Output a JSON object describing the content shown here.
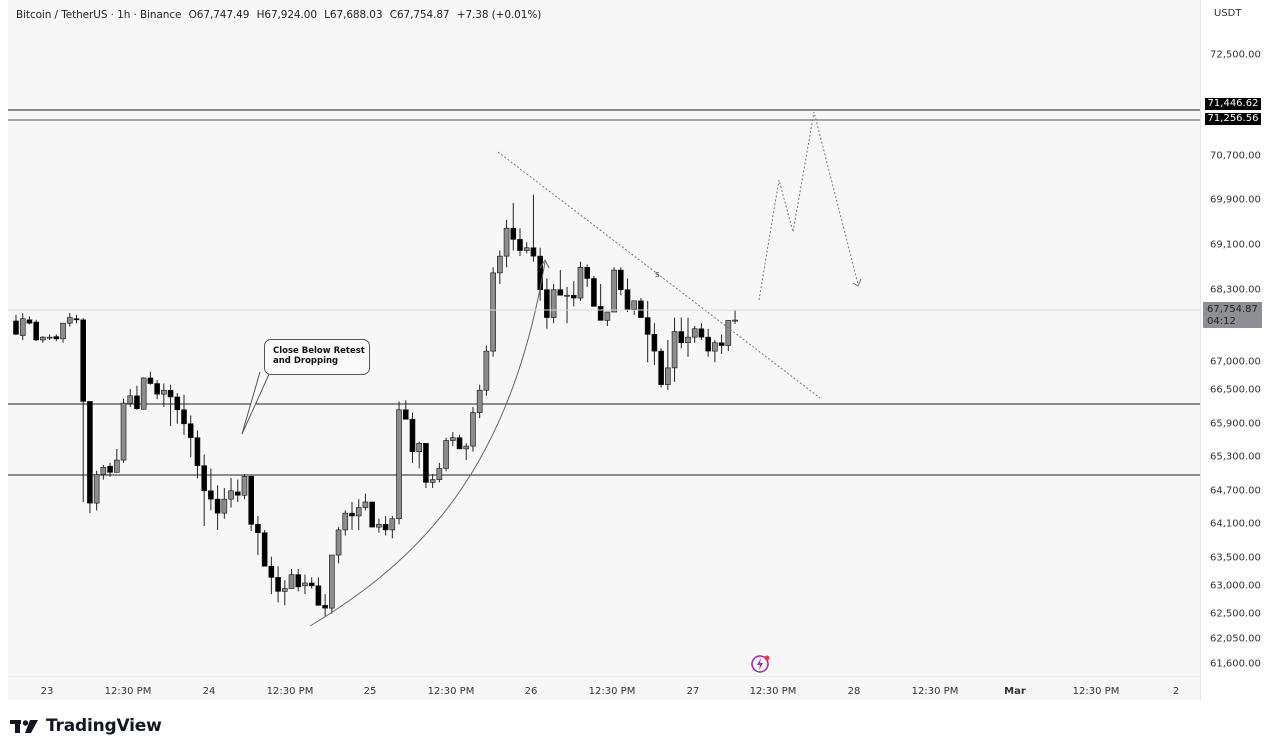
{
  "header": {
    "symbol": "Bitcoin / TetherUS · 1h · Binance",
    "open": "O67,747.49",
    "high": "H67,924.00",
    "low": "L67,688.03",
    "close": "C67,754.87",
    "change": "+7.38 (+0.01%)"
  },
  "price_axis": {
    "currency": "USDT",
    "ticks": [
      "72,500.00",
      "70,700.00",
      "69,900.00",
      "69,100.00",
      "68,300.00",
      "67,000.00",
      "66,500.00",
      "65,900.00",
      "65,300.00",
      "64,700.00",
      "64,100.00",
      "63,500.00",
      "63,000.00",
      "62,500.00",
      "62,050.00",
      "61,600.00"
    ],
    "horizontal_labels": [
      "71,446.62",
      "71,256.56"
    ],
    "last_price": "67,754.87",
    "countdown": "04:12"
  },
  "time_axis": {
    "labels": [
      "23",
      "12:30 PM",
      "24",
      "12:30 PM",
      "25",
      "12:30 PM",
      "26",
      "12:30 PM",
      "27",
      "12:30 PM",
      "28",
      "12:30 PM",
      "Mar",
      "12:30 PM",
      "2"
    ]
  },
  "annotation": {
    "callout_line1": "Close Below Retest",
    "callout_line2": "and Dropping"
  },
  "branding": {
    "logo_text": "TradingView"
  },
  "colors": {
    "up": "#8c8c8c",
    "down": "#000000",
    "background": "#f7f7f7",
    "accent": "#9c27b0"
  },
  "chart_data": {
    "type": "candlestick",
    "title": "Bitcoin / TetherUS · 1h · Binance",
    "xlabel": "",
    "ylabel": "USDT",
    "ylim": [
      61400,
      73000
    ],
    "x_ticks": [
      "23",
      "12:30 PM",
      "24",
      "12:30 PM",
      "25",
      "12:30 PM",
      "26",
      "12:30 PM",
      "27",
      "12:30 PM",
      "28",
      "12:30 PM",
      "Mar",
      "12:30 PM",
      "2"
    ],
    "y_ticks": [
      72500,
      70700,
      69900,
      69100,
      68300,
      67000,
      66500,
      65900,
      65300,
      64700,
      64100,
      63500,
      63000,
      62500,
      62050,
      61600
    ],
    "last": {
      "open": 67747.49,
      "high": 67924.0,
      "low": 67688.03,
      "close": 67754.87,
      "change": 7.38,
      "change_pct": 0.01
    },
    "horizontal_levels": [
      71446.62,
      71256.56,
      65950,
      64720
    ],
    "candles": [
      [
        67740,
        67850,
        67560,
        67500
      ],
      [
        67480,
        67880,
        67400,
        67780
      ],
      [
        67760,
        67820,
        67680,
        67700
      ],
      [
        67720,
        67760,
        67380,
        67400
      ],
      [
        67400,
        67470,
        67350,
        67450
      ],
      [
        67440,
        67500,
        67400,
        67450
      ],
      [
        67460,
        67500,
        67380,
        67420
      ],
      [
        67420,
        67520,
        67350,
        67700
      ],
      [
        67700,
        67880,
        67640,
        67800
      ],
      [
        67780,
        67850,
        67700,
        67760
      ],
      [
        67760,
        67790,
        64500,
        66300
      ],
      [
        66300,
        66300,
        64300,
        64480
      ],
      [
        64480,
        65060,
        64350,
        64990
      ],
      [
        64990,
        65160,
        64900,
        65120
      ],
      [
        65140,
        65200,
        64950,
        65030
      ],
      [
        65030,
        65450,
        65030,
        65250
      ],
      [
        65250,
        66350,
        65200,
        66270
      ],
      [
        66260,
        66520,
        66200,
        66400
      ],
      [
        66400,
        66580,
        66150,
        66170
      ],
      [
        66160,
        66730,
        66150,
        66720
      ],
      [
        66720,
        66830,
        66600,
        66620
      ],
      [
        66620,
        66680,
        66340,
        66430
      ],
      [
        66430,
        66620,
        66200,
        66500
      ],
      [
        66500,
        66600,
        65860,
        66380
      ],
      [
        66380,
        66450,
        65900,
        66150
      ],
      [
        66150,
        66420,
        65700,
        65900
      ],
      [
        65900,
        66050,
        65300,
        65650
      ],
      [
        65650,
        65780,
        64920,
        65150
      ],
      [
        65150,
        65350,
        64070,
        64700
      ],
      [
        64700,
        65100,
        64350,
        64550
      ],
      [
        64550,
        64800,
        64000,
        64300
      ],
      [
        64300,
        64750,
        64200,
        64550
      ],
      [
        64550,
        64930,
        64400,
        64700
      ],
      [
        64680,
        64900,
        64500,
        64620
      ],
      [
        64620,
        65000,
        64550,
        64960
      ],
      [
        64960,
        64960,
        63980,
        64100
      ],
      [
        64100,
        64250,
        63550,
        63950
      ],
      [
        63950,
        64000,
        63700,
        63350
      ],
      [
        63350,
        63520,
        62850,
        63150
      ],
      [
        63150,
        63350,
        62700,
        62900
      ],
      [
        62900,
        63100,
        62650,
        62950
      ],
      [
        62950,
        63300,
        62950,
        63200
      ],
      [
        63200,
        63300,
        62900,
        62980
      ],
      [
        63000,
        63200,
        62850,
        63050
      ],
      [
        63050,
        63150,
        62950,
        63000
      ],
      [
        63000,
        63150,
        62800,
        62650
      ],
      [
        62650,
        62850,
        62450,
        62600
      ],
      [
        62600,
        63500,
        62500,
        63550
      ],
      [
        63550,
        64050,
        63400,
        64000
      ],
      [
        64000,
        64350,
        63900,
        64300
      ],
      [
        64300,
        64500,
        64000,
        64250
      ],
      [
        64250,
        64550,
        64000,
        64400
      ],
      [
        64400,
        64650,
        64350,
        64500
      ],
      [
        64500,
        64500,
        64150,
        64050
      ],
      [
        64050,
        64200,
        63950,
        64100
      ],
      [
        64100,
        64250,
        63900,
        64000
      ],
      [
        64000,
        64250,
        63850,
        64200
      ],
      [
        64200,
        66300,
        64100,
        66150
      ],
      [
        66150,
        66320,
        65980,
        65980
      ],
      [
        65980,
        66100,
        65200,
        65400
      ],
      [
        65400,
        65580,
        65100,
        65550
      ],
      [
        65550,
        65550,
        64750,
        64850
      ],
      [
        64850,
        65000,
        64750,
        64900
      ],
      [
        64900,
        65200,
        64850,
        65100
      ],
      [
        65100,
        65650,
        65050,
        65600
      ],
      [
        65600,
        65750,
        65500,
        65650
      ],
      [
        65650,
        65700,
        65450,
        65450
      ],
      [
        65450,
        65550,
        65250,
        65500
      ],
      [
        65500,
        66200,
        65400,
        66100
      ],
      [
        66100,
        66600,
        66000,
        66500
      ],
      [
        66500,
        67300,
        66400,
        67200
      ],
      [
        67200,
        68700,
        67100,
        68600
      ],
      [
        68600,
        69000,
        68400,
        68900
      ],
      [
        68900,
        69550,
        68700,
        69400
      ],
      [
        69400,
        69850,
        69000,
        69200
      ],
      [
        69200,
        69400,
        68900,
        69000
      ],
      [
        69000,
        69150,
        68950,
        69050
      ],
      [
        69050,
        70000,
        68800,
        68900
      ],
      [
        68900,
        69050,
        68100,
        68300
      ],
      [
        68300,
        68500,
        67600,
        67800
      ],
      [
        67800,
        68400,
        67700,
        68300
      ],
      [
        68300,
        68650,
        68200,
        68200
      ],
      [
        68200,
        68350,
        67700,
        68200
      ],
      [
        68200,
        68450,
        68000,
        68150
      ],
      [
        68150,
        68800,
        68100,
        68700
      ],
      [
        68700,
        68750,
        68350,
        68500
      ],
      [
        68500,
        68550,
        68000,
        68000
      ],
      [
        68000,
        68400,
        67900,
        67750
      ],
      [
        67750,
        67800,
        67650,
        67900
      ],
      [
        67900,
        68700,
        67900,
        68650
      ],
      [
        68650,
        68700,
        68200,
        68300
      ],
      [
        68300,
        68500,
        67900,
        67950
      ],
      [
        67950,
        68000,
        67850,
        68100
      ],
      [
        68100,
        68150,
        67850,
        67800
      ],
      [
        67800,
        68100,
        67000,
        67500
      ],
      [
        67500,
        67700,
        66950,
        67200
      ],
      [
        67200,
        67250,
        66550,
        66600
      ],
      [
        66600,
        67400,
        66500,
        66900
      ],
      [
        66900,
        67800,
        66650,
        67550
      ],
      [
        67550,
        67800,
        67250,
        67350
      ],
      [
        67350,
        67800,
        67100,
        67450
      ],
      [
        67450,
        67650,
        67350,
        67600
      ],
      [
        67600,
        67700,
        67400,
        67450
      ],
      [
        67450,
        67600,
        67100,
        67200
      ],
      [
        67200,
        67400,
        67000,
        67350
      ],
      [
        67350,
        67500,
        67150,
        67300
      ],
      [
        67300,
        67750,
        67200,
        67750
      ],
      [
        67747.49,
        67924,
        67688.03,
        67754.87
      ]
    ]
  }
}
